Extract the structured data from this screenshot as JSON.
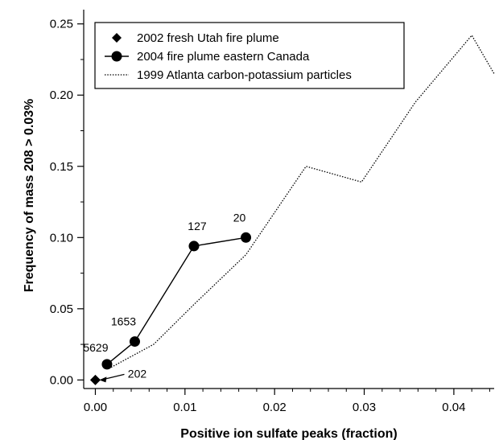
{
  "chart_data": {
    "type": "scatter",
    "xlabel": "Positive ion sulfate peaks (fraction)",
    "ylabel": "Frequency of mass 208 > 0.03%",
    "xlim": [
      -0.0013,
      0.0445
    ],
    "ylim": [
      -0.006,
      0.26
    ],
    "x_ticks": [
      0.0,
      0.01,
      0.02,
      0.03,
      0.04
    ],
    "x_tick_labels": [
      "0.00",
      "0.01",
      "0.02",
      "0.03",
      "0.04"
    ],
    "y_ticks": [
      0.0,
      0.05,
      0.1,
      0.15,
      0.2,
      0.25
    ],
    "y_tick_labels": [
      "0.00",
      "0.05",
      "0.10",
      "0.15",
      "0.20",
      "0.25"
    ],
    "grid": false,
    "legend_position": "top-left",
    "series": [
      {
        "name": "2002 fresh Utah fire plume",
        "marker": "diamond",
        "line": "none",
        "color": "#000000",
        "points": [
          {
            "x": 0.0,
            "y": 0.0,
            "label": "202"
          }
        ]
      },
      {
        "name": "2004 fire plume eastern Canada",
        "marker": "circle",
        "line": "solid",
        "color": "#000000",
        "points": [
          {
            "x": 0.0013,
            "y": 0.011,
            "label": "5629"
          },
          {
            "x": 0.0044,
            "y": 0.027,
            "label": "1653"
          },
          {
            "x": 0.011,
            "y": 0.094,
            "label": "127"
          },
          {
            "x": 0.0168,
            "y": 0.1,
            "label": "20"
          }
        ]
      },
      {
        "name": "1999 Atlanta carbon-potassium particles",
        "marker": "none",
        "line": "dotted",
        "color": "#000000",
        "points": [
          {
            "x": 0.0015,
            "y": 0.008
          },
          {
            "x": 0.0065,
            "y": 0.025
          },
          {
            "x": 0.011,
            "y": 0.053
          },
          {
            "x": 0.0168,
            "y": 0.088
          },
          {
            "x": 0.0235,
            "y": 0.15
          },
          {
            "x": 0.0297,
            "y": 0.139
          },
          {
            "x": 0.0357,
            "y": 0.195
          },
          {
            "x": 0.042,
            "y": 0.242
          },
          {
            "x": 0.0445,
            "y": 0.215
          }
        ]
      }
    ]
  }
}
